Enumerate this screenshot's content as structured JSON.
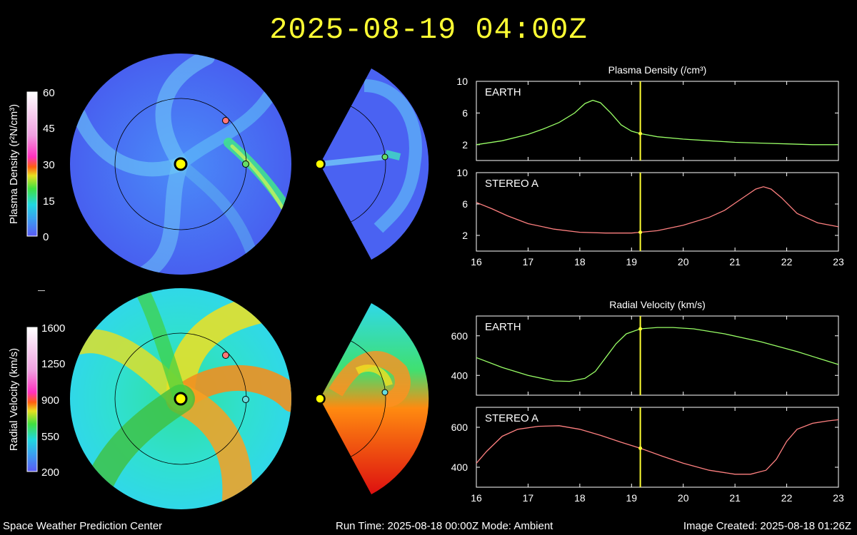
{
  "header": {
    "timestamp": "2025-08-19 04:00Z"
  },
  "footer": {
    "organization": "Space Weather Prediction Center",
    "run_info": "Run Time: 2025-08-18 00:00Z   Mode: Ambient",
    "image_created": "Image Created: 2025-08-18 01:26Z"
  },
  "colorbars": {
    "density": {
      "label": "Plasma Density (r²N/cm³)",
      "ticks": [
        "60",
        "45",
        "30",
        "15",
        "0"
      ]
    },
    "velocity": {
      "label": "Radial Velocity (km/s)",
      "ticks": [
        "1600",
        "1250",
        "900",
        "550",
        "200"
      ]
    }
  },
  "colors": {
    "sun": "#ffff00",
    "earth": "#66dd66",
    "stereo_a": "#ff7777",
    "current_time_line": "#ffff33",
    "earth_trace": "#99ff66",
    "stereo_trace": "#ff8080"
  },
  "chart_data": [
    {
      "type": "line",
      "title": "Plasma Density (/cm³)",
      "xlim": [
        16,
        23
      ],
      "xticks": [
        "16",
        "17",
        "18",
        "19",
        "20",
        "21",
        "22",
        "23"
      ],
      "current_time": 19.17,
      "panels": [
        {
          "name": "EARTH",
          "ylim": [
            0,
            10
          ],
          "yticks": [
            "10",
            "6",
            "2"
          ],
          "ytick_values": [
            10,
            6,
            2
          ],
          "x": [
            16,
            16.5,
            17,
            17.3,
            17.6,
            17.9,
            18.1,
            18.25,
            18.4,
            18.6,
            18.8,
            19,
            19.17,
            19.5,
            20,
            20.5,
            21,
            21.5,
            22,
            22.5,
            23
          ],
          "y": [
            2.0,
            2.5,
            3.3,
            4.0,
            4.8,
            6.0,
            7.2,
            7.6,
            7.3,
            6.0,
            4.5,
            3.7,
            3.4,
            3.0,
            2.7,
            2.5,
            2.3,
            2.2,
            2.1,
            2.0,
            2.0
          ]
        },
        {
          "name": "STEREO A",
          "ylim": [
            0,
            10
          ],
          "yticks": [
            "10",
            "6",
            "2"
          ],
          "ytick_values": [
            10,
            6,
            2
          ],
          "x": [
            16,
            16.3,
            16.6,
            17,
            17.5,
            18,
            18.5,
            19,
            19.17,
            19.5,
            20,
            20.5,
            20.8,
            21,
            21.2,
            21.4,
            21.55,
            21.7,
            21.9,
            22.2,
            22.6,
            23
          ],
          "y": [
            6.2,
            5.4,
            4.5,
            3.5,
            2.8,
            2.4,
            2.3,
            2.3,
            2.4,
            2.6,
            3.3,
            4.3,
            5.2,
            6.1,
            7.0,
            7.9,
            8.2,
            7.9,
            6.8,
            4.8,
            3.6,
            3.1
          ]
        }
      ]
    },
    {
      "type": "line",
      "title": "Radial Velocity (km/s)",
      "xlim": [
        16,
        23
      ],
      "xticks": [
        "16",
        "17",
        "18",
        "19",
        "20",
        "21",
        "22",
        "23"
      ],
      "current_time": 19.17,
      "panels": [
        {
          "name": "EARTH",
          "ylim": [
            300,
            700
          ],
          "yticks": [
            "600",
            "400"
          ],
          "ytick_values": [
            600,
            400
          ],
          "x": [
            16,
            16.5,
            17,
            17.5,
            17.8,
            18.1,
            18.3,
            18.5,
            18.7,
            18.9,
            19.17,
            19.5,
            19.8,
            20.2,
            20.8,
            21.5,
            22.2,
            23
          ],
          "y": [
            490,
            440,
            400,
            372,
            370,
            385,
            420,
            490,
            560,
            610,
            635,
            642,
            642,
            635,
            610,
            570,
            520,
            455
          ]
        },
        {
          "name": "STEREO A",
          "ylim": [
            300,
            700
          ],
          "yticks": [
            "600",
            "400"
          ],
          "ytick_values": [
            600,
            400
          ],
          "x": [
            16,
            16.2,
            16.5,
            16.8,
            17.2,
            17.6,
            18,
            18.4,
            18.8,
            19.17,
            19.6,
            20,
            20.5,
            21,
            21.3,
            21.6,
            21.8,
            22,
            22.2,
            22.5,
            22.8,
            23
          ],
          "y": [
            420,
            480,
            555,
            590,
            605,
            608,
            590,
            560,
            525,
            495,
            455,
            420,
            385,
            365,
            365,
            385,
            440,
            530,
            590,
            620,
            632,
            638
          ]
        }
      ]
    }
  ]
}
